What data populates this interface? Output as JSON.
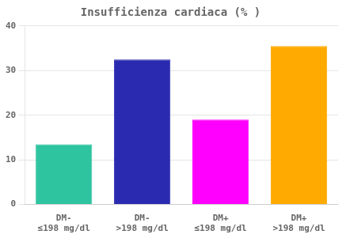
{
  "chart_data": {
    "type": "bar",
    "title": "Insufficienza cardiaca (% )",
    "categories": [
      [
        "DM-",
        "≤198 mg/dl"
      ],
      [
        "DM-",
        ">198 mg/dl"
      ],
      [
        "DM+",
        "≤198 mg/dl"
      ],
      [
        "DM+",
        ">198 mg/dl"
      ]
    ],
    "values": [
      13.5,
      32.5,
      19.0,
      35.5
    ],
    "colors": [
      "#2ec4a0",
      "#2a2ab0",
      "#ff00ff",
      "#ffaa00"
    ],
    "ylim": [
      0,
      40
    ],
    "yticks": [
      0,
      10,
      20,
      30,
      40
    ],
    "grid": true
  }
}
